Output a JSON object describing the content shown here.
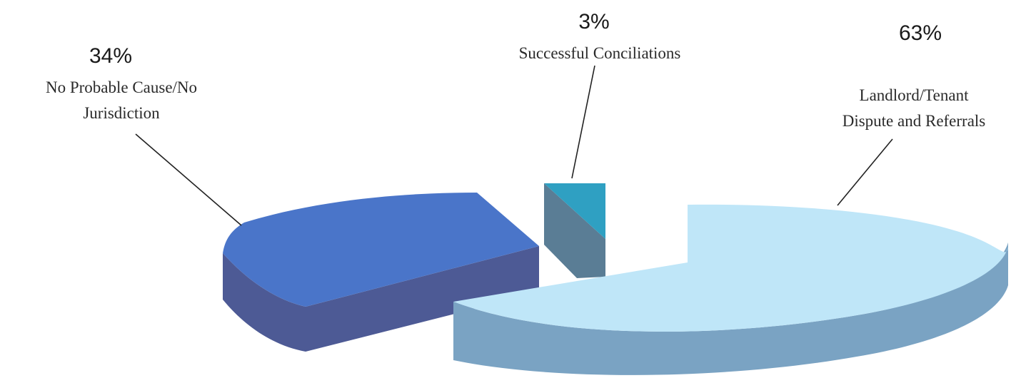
{
  "chart_data": {
    "type": "pie",
    "three_d": true,
    "exploded": true,
    "title": "",
    "slices": [
      {
        "label_lines": [
          "No Probable Cause/No",
          "Jurisdiction"
        ],
        "value": 34,
        "value_label": "34%",
        "top_color": "#4a75c9",
        "side_color": "#4d5a95"
      },
      {
        "label_lines": [
          "Successful Conciliations"
        ],
        "value": 3,
        "value_label": "3%",
        "top_color": "#2fa0c2",
        "side_color": "#5a7d95"
      },
      {
        "label_lines": [
          "Landlord/Tenant",
          "Dispute and Referrals"
        ],
        "value": 63,
        "value_label": "63%",
        "top_color": "#bfe6f8",
        "side_color": "#7aa3c3"
      }
    ]
  }
}
